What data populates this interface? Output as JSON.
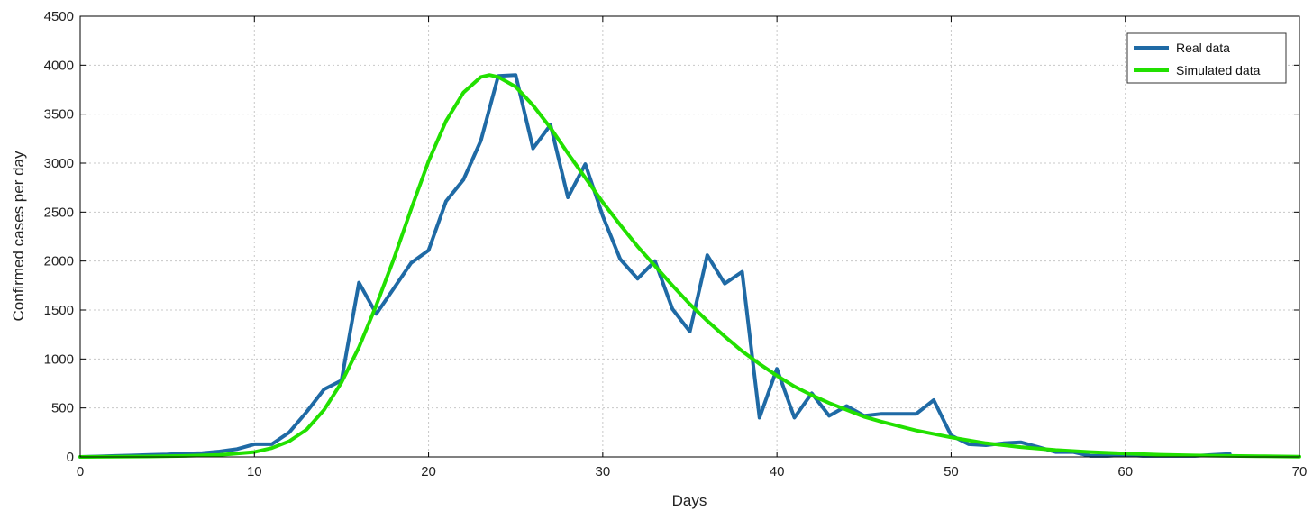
{
  "chart_data": {
    "type": "line",
    "title": "",
    "xlabel": "Days",
    "ylabel": "Confirmed cases per day",
    "xlim": [
      0,
      70
    ],
    "ylim": [
      0,
      4500
    ],
    "xticks": [
      0,
      10,
      20,
      30,
      40,
      50,
      60,
      70
    ],
    "yticks": [
      0,
      500,
      1000,
      1500,
      2000,
      2500,
      3000,
      3500,
      4000,
      4500
    ],
    "grid": true,
    "legend_position": "top-right",
    "series": [
      {
        "name": "Real data",
        "color": "#1f6aa5",
        "x": [
          0,
          1,
          2,
          3,
          4,
          5,
          6,
          7,
          8,
          9,
          10,
          11,
          12,
          13,
          14,
          15,
          16,
          17,
          18,
          19,
          20,
          21,
          22,
          23,
          24,
          25,
          26,
          27,
          28,
          29,
          30,
          31,
          32,
          33,
          34,
          35,
          36,
          37,
          38,
          39,
          40,
          41,
          42,
          43,
          44,
          45,
          46,
          47,
          48,
          49,
          50,
          51,
          52,
          53,
          54,
          55,
          56,
          57,
          58,
          59,
          60,
          61,
          62,
          63,
          64,
          65,
          66
        ],
        "y": [
          0,
          5,
          10,
          15,
          20,
          25,
          35,
          40,
          55,
          80,
          130,
          130,
          250,
          460,
          690,
          780,
          1780,
          1460,
          1720,
          1980,
          2110,
          2610,
          2830,
          3230,
          3890,
          3900,
          3150,
          3390,
          2650,
          2990,
          2460,
          2020,
          1820,
          2000,
          1510,
          1280,
          2060,
          1770,
          1890,
          400,
          900,
          400,
          650,
          420,
          520,
          420,
          440,
          440,
          440,
          580,
          220,
          130,
          120,
          140,
          150,
          100,
          50,
          50,
          10,
          10,
          20,
          10,
          10,
          10,
          10,
          20,
          30
        ]
      },
      {
        "name": "Simulated data",
        "color": "#22e000",
        "x": [
          0,
          2,
          4,
          6,
          8,
          10,
          11,
          12,
          13,
          14,
          15,
          16,
          17,
          18,
          19,
          20,
          21,
          22,
          23,
          23.5,
          24,
          25,
          26,
          27,
          28,
          29,
          30,
          31,
          32,
          33,
          34,
          35,
          36,
          37,
          38,
          39,
          40,
          41,
          42,
          43,
          44,
          45,
          46,
          48,
          50,
          52,
          54,
          56,
          58,
          60,
          62,
          64,
          66,
          68,
          70
        ],
        "y": [
          0,
          2,
          5,
          10,
          20,
          50,
          90,
          160,
          280,
          480,
          760,
          1120,
          1550,
          2020,
          2530,
          3020,
          3430,
          3720,
          3880,
          3900,
          3880,
          3780,
          3590,
          3360,
          3100,
          2850,
          2600,
          2370,
          2150,
          1950,
          1750,
          1560,
          1390,
          1230,
          1080,
          950,
          830,
          720,
          630,
          550,
          480,
          410,
          360,
          270,
          200,
          140,
          100,
          70,
          50,
          35,
          22,
          15,
          10,
          6,
          3
        ]
      }
    ]
  }
}
